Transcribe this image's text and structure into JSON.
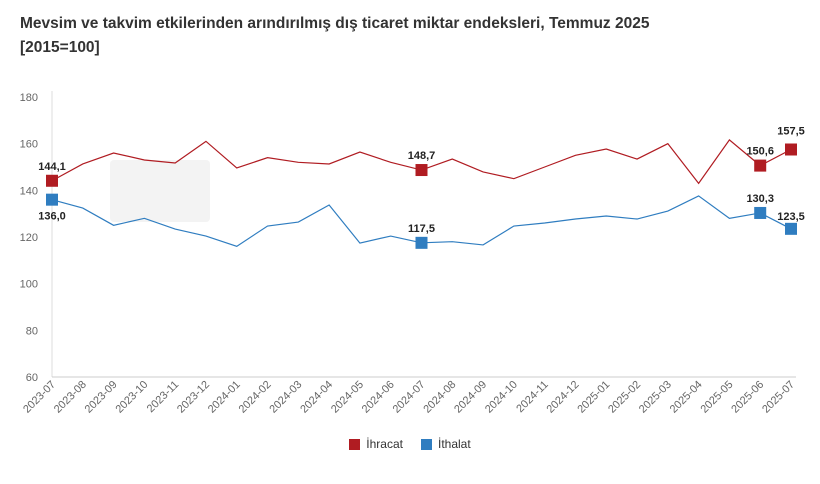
{
  "chart_data": {
    "type": "line",
    "title": "Mevsim ve takvim etkilerinden arındırılmış dış ticaret miktar endeksleri, Temmuz 2025",
    "subtitle": "[2015=100]",
    "categories": [
      "2023-07",
      "2023-08",
      "2023-09",
      "2023-10",
      "2023-11",
      "2023-12",
      "2024-01",
      "2024-02",
      "2024-03",
      "2024-04",
      "2024-05",
      "2024-06",
      "2024-07",
      "2024-08",
      "2024-09",
      "2024-10",
      "2024-11",
      "2024-12",
      "2025-01",
      "2025-02",
      "2025-03",
      "2025-04",
      "2025-05",
      "2025-06",
      "2025-07"
    ],
    "ylim": [
      60,
      180
    ],
    "yticks": [
      60,
      80,
      100,
      120,
      140,
      160,
      180
    ],
    "grid": false,
    "legend": "bottom",
    "series": [
      {
        "name": "İhracat",
        "color": "#b01c22",
        "values": [
          144.1,
          151.3,
          156.0,
          153.0,
          151.7,
          161.0,
          149.6,
          154.0,
          152.0,
          151.3,
          156.4,
          152.0,
          148.7,
          153.4,
          147.9,
          145.0,
          150.0,
          155.0,
          157.7,
          153.4,
          160.0,
          143.0,
          161.6,
          150.6,
          157.5
        ],
        "labels": {
          "0": "144,1",
          "12": "148,7",
          "23": "150,6",
          "24": "157,5"
        }
      },
      {
        "name": "İthalat",
        "color": "#2f7dc0",
        "values": [
          136.0,
          132.4,
          125.0,
          128.0,
          123.4,
          120.4,
          116.0,
          124.7,
          126.4,
          133.7,
          117.4,
          120.4,
          117.5,
          118.0,
          116.6,
          124.7,
          126.0,
          127.7,
          129.0,
          127.7,
          131.1,
          137.6,
          128.0,
          130.3,
          123.5
        ],
        "labels": {
          "0": "136,0",
          "12": "117,5",
          "23": "130,3",
          "24": "123,5"
        }
      }
    ]
  }
}
